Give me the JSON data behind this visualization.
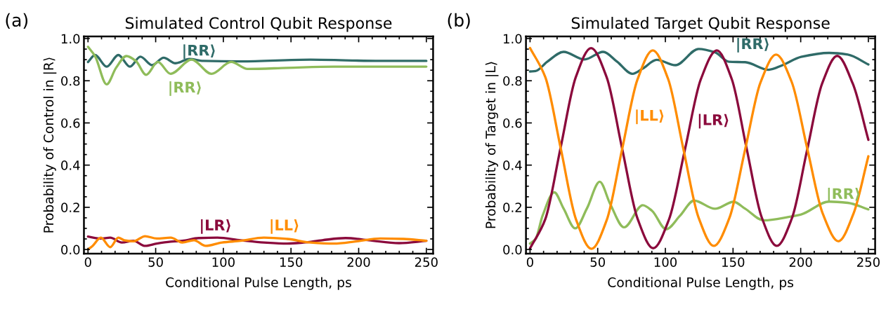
{
  "chart_data": [
    {
      "type": "line",
      "title": "Simulated Control Qubit Response",
      "xlabel": "Conditional Pulse Length, ps",
      "ylabel": "Probability of Control in |R⟩",
      "annotations": [
        "(a)"
      ],
      "xlim": [
        -3,
        255
      ],
      "xticks": [
        0,
        50,
        100,
        150,
        200,
        250
      ],
      "ylim": [
        -0.02,
        1.01
      ],
      "yticks": [
        {
          "value": 0,
          "label": "0.0"
        },
        {
          "value": 0.2,
          "label": "0.2"
        },
        {
          "value": 0.4,
          "label": "0.4"
        },
        {
          "value": 0.6,
          "label": "0.6"
        },
        {
          "value": 0.8,
          "label": "0.8"
        },
        {
          "value": 1,
          "label": "1.0"
        }
      ],
      "grid": false,
      "legend": false,
      "line_style": "solid",
      "marker": "none",
      "series": [
        {
          "name": "|RR⟩",
          "color": "#2f6b68",
          "x": [
            0,
            5.2,
            13.8,
            22.4,
            31.0,
            38.7,
            47.3,
            55.9,
            64.6,
            74.9,
            85.2,
            112.8,
            164.4,
            216.1,
            250
          ],
          "values": [
            0.889,
            0.922,
            0.867,
            0.922,
            0.867,
            0.914,
            0.874,
            0.909,
            0.883,
            0.903,
            0.894,
            0.892,
            0.9,
            0.894,
            0.894
          ]
        },
        {
          "name": "|RR⟩",
          "color": "#8fbc5a",
          "x": [
            0,
            5.2,
            13.8,
            20.7,
            28.4,
            35.3,
            43.0,
            51.6,
            61.0,
            76.5,
            91.2,
            105.8,
            117.9,
            147.1,
            181.6,
            250
          ],
          "values": [
            0.961,
            0.917,
            0.783,
            0.861,
            0.917,
            0.894,
            0.828,
            0.889,
            0.833,
            0.9,
            0.833,
            0.889,
            0.856,
            0.861,
            0.867,
            0.867
          ]
        },
        {
          "name": "|LR⟩",
          "color": "#8b0a3c",
          "x": [
            0,
            9.5,
            16.4,
            25.0,
            33.6,
            42.2,
            50.8,
            61.1,
            69.7,
            81.8,
            95.6,
            112.8,
            130,
            147.2,
            159.3,
            173.1,
            190.3,
            207.5,
            229.9,
            250
          ],
          "values": [
            0.061,
            0.052,
            0.056,
            0.033,
            0.041,
            0.017,
            0.028,
            0.037,
            0.041,
            0.054,
            0.056,
            0.044,
            0.033,
            0.028,
            0.033,
            0.044,
            0.054,
            0.044,
            0.03,
            0.041
          ]
        },
        {
          "name": "|LL⟩",
          "color": "#ff8c00",
          "x": [
            0,
            3.4,
            9.5,
            16.4,
            22.4,
            26.7,
            33.6,
            42.2,
            50.8,
            61.1,
            69.7,
            78.3,
            87,
            99,
            112.8,
            130,
            147.2,
            164.4,
            181.6,
            198.8,
            216.1,
            233.3,
            250
          ],
          "values": [
            0,
            0.017,
            0.056,
            0.011,
            0.056,
            0.044,
            0.039,
            0.063,
            0.052,
            0.056,
            0.033,
            0.044,
            0.017,
            0.033,
            0.041,
            0.056,
            0.05,
            0.033,
            0.028,
            0.039,
            0.052,
            0.05,
            0.041
          ]
        }
      ]
    },
    {
      "type": "line",
      "title": "Simulated Target Qubit Response",
      "xlabel": "Conditional Pulse Length, ps",
      "ylabel": "Probability of Target in |L⟩",
      "annotations": [
        "(b)"
      ],
      "xlim": [
        -3,
        255
      ],
      "xticks": [
        0,
        50,
        100,
        150,
        200,
        250
      ],
      "ylim": [
        -0.02,
        1.01
      ],
      "yticks": [
        {
          "value": 0,
          "label": "0.0"
        },
        {
          "value": 0.2,
          "label": "0.2"
        },
        {
          "value": 0.4,
          "label": "0.4"
        },
        {
          "value": 0.6,
          "label": "0.6"
        },
        {
          "value": 0.8,
          "label": "0.8"
        },
        {
          "value": 1,
          "label": "1.0"
        }
      ],
      "grid": false,
      "legend": false,
      "line_style": "solid",
      "marker": "none",
      "series": [
        {
          "name": "|RR⟩",
          "color": "#2f6b68",
          "x": [
            0,
            4.1,
            12.7,
            24.8,
            40.3,
            54.0,
            64.4,
            75.6,
            83.3,
            93.6,
            107.4,
            124.6,
            136.7,
            147.0,
            159.0,
            176.3,
            186.6,
            200.3,
            221.0,
            234.8,
            250
          ],
          "values": [
            0.844,
            0.846,
            0.89,
            0.937,
            0.901,
            0.937,
            0.89,
            0.833,
            0.858,
            0.899,
            0.874,
            0.951,
            0.935,
            0.89,
            0.888,
            0.852,
            0.874,
            0.913,
            0.932,
            0.924,
            0.877
          ]
        },
        {
          "name": "|RR⟩",
          "color": "#8fbc5a",
          "x": [
            0,
            4.1,
            9.3,
            17.9,
            24.8,
            33.4,
            42.0,
            51.5,
            59.2,
            69.5,
            83.3,
            90.2,
            100.5,
            110.8,
            121.2,
            136.7,
            150.4,
            159.0,
            172.8,
            191.7,
            200.3,
            221.0,
            234.8,
            250
          ],
          "values": [
            0.028,
            0.05,
            0.161,
            0.271,
            0.194,
            0.1,
            0.194,
            0.321,
            0.216,
            0.105,
            0.21,
            0.183,
            0.096,
            0.16,
            0.232,
            0.193,
            0.226,
            0.193,
            0.138,
            0.155,
            0.166,
            0.227,
            0.221,
            0.19
          ]
        },
        {
          "name": "|LR⟩",
          "color": "#8b0a3c",
          "x": [
            0,
            11.3,
            22.5,
            33.8,
            45.1,
            56.6,
            68,
            79.5,
            91,
            102.7,
            114.5,
            126.2,
            138,
            149,
            160,
            171.2,
            182.3,
            193.5,
            204.6,
            215.8,
            227,
            238.5,
            250
          ],
          "values": [
            0.005,
            0.144,
            0.48,
            0.817,
            0.955,
            0.817,
            0.48,
            0.145,
            0.006,
            0.143,
            0.475,
            0.807,
            0.944,
            0.809,
            0.48,
            0.152,
            0.017,
            0.148,
            0.467,
            0.786,
            0.918,
            0.786,
            0.52
          ]
        },
        {
          "name": "|LL⟩",
          "color": "#ff8c00",
          "x": [
            0,
            11.35,
            22.7,
            34,
            45.4,
            56.7,
            68,
            79.4,
            90.7,
            102,
            113.2,
            124.5,
            135.8,
            147.3,
            158.8,
            170.3,
            181.8,
            193.3,
            204.8,
            216.4,
            227.9,
            239,
            250
          ],
          "values": [
            0.955,
            0.816,
            0.479,
            0.142,
            0.003,
            0.14,
            0.474,
            0.806,
            0.944,
            0.809,
            0.48,
            0.152,
            0.017,
            0.149,
            0.47,
            0.792,
            0.924,
            0.795,
            0.48,
            0.168,
            0.039,
            0.17,
            0.442
          ]
        }
      ]
    }
  ]
}
